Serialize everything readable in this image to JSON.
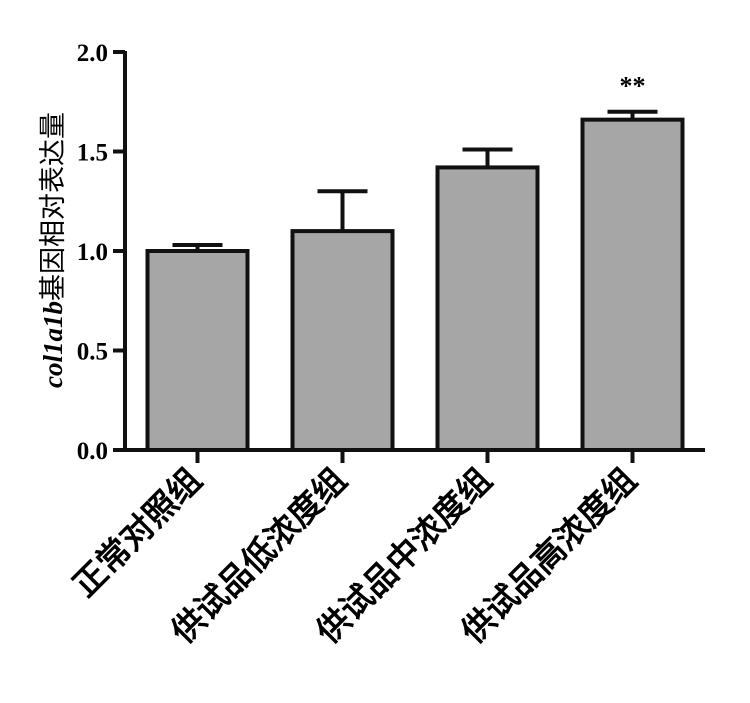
{
  "chart_data": {
    "type": "bar",
    "title": "",
    "categories": [
      "正常对照组",
      "供试品低浓度组",
      "供试品中浓度组",
      "供试品高浓度组"
    ],
    "values": [
      1.0,
      1.1,
      1.42,
      1.66
    ],
    "errors": [
      0.03,
      0.2,
      0.09,
      0.04
    ],
    "annotations": [
      "",
      "",
      "",
      "**"
    ],
    "ylabel": {
      "gene": "col1a1b",
      "rest": "基因相对表达量"
    },
    "ylim": [
      0,
      2.0
    ],
    "yticks": [
      0.0,
      0.5,
      1.0,
      1.5,
      2.0
    ],
    "ytick_labels": [
      "0.0",
      "0.5",
      "1.0",
      "1.5",
      "2.0"
    ],
    "grid": false,
    "colors": {
      "bar_fill": "#a6a6a6",
      "bar_stroke": "#111111",
      "axis": "#111111"
    }
  }
}
